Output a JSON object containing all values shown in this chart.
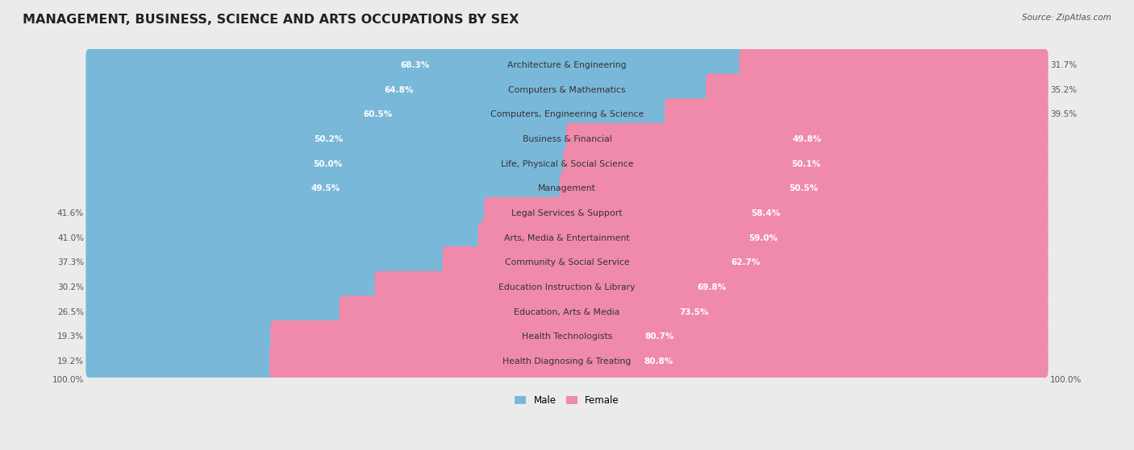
{
  "title": "MANAGEMENT, BUSINESS, SCIENCE AND ARTS OCCUPATIONS BY SEX",
  "source": "Source: ZipAtlas.com",
  "categories": [
    "Architecture & Engineering",
    "Computers & Mathematics",
    "Computers, Engineering & Science",
    "Business & Financial",
    "Life, Physical & Social Science",
    "Management",
    "Legal Services & Support",
    "Arts, Media & Entertainment",
    "Community & Social Service",
    "Education Instruction & Library",
    "Education, Arts & Media",
    "Health Technologists",
    "Health Diagnosing & Treating"
  ],
  "male_pct": [
    68.3,
    64.8,
    60.5,
    50.2,
    50.0,
    49.5,
    41.6,
    41.0,
    37.3,
    30.2,
    26.5,
    19.3,
    19.2
  ],
  "female_pct": [
    31.7,
    35.2,
    39.5,
    49.8,
    50.1,
    50.5,
    58.4,
    59.0,
    62.7,
    69.8,
    73.5,
    80.7,
    80.8
  ],
  "male_color": "#7ab8d9",
  "female_color": "#f08aaa",
  "bg_color": "#ebebeb",
  "bar_bg_color": "#e0e0e8",
  "row_bg_light": "#f5f5f8",
  "title_fontsize": 11.5,
  "label_fontsize": 7.8,
  "pct_fontsize": 7.5,
  "legend_fontsize": 8.5,
  "source_fontsize": 7.5,
  "inside_label_threshold": 45
}
